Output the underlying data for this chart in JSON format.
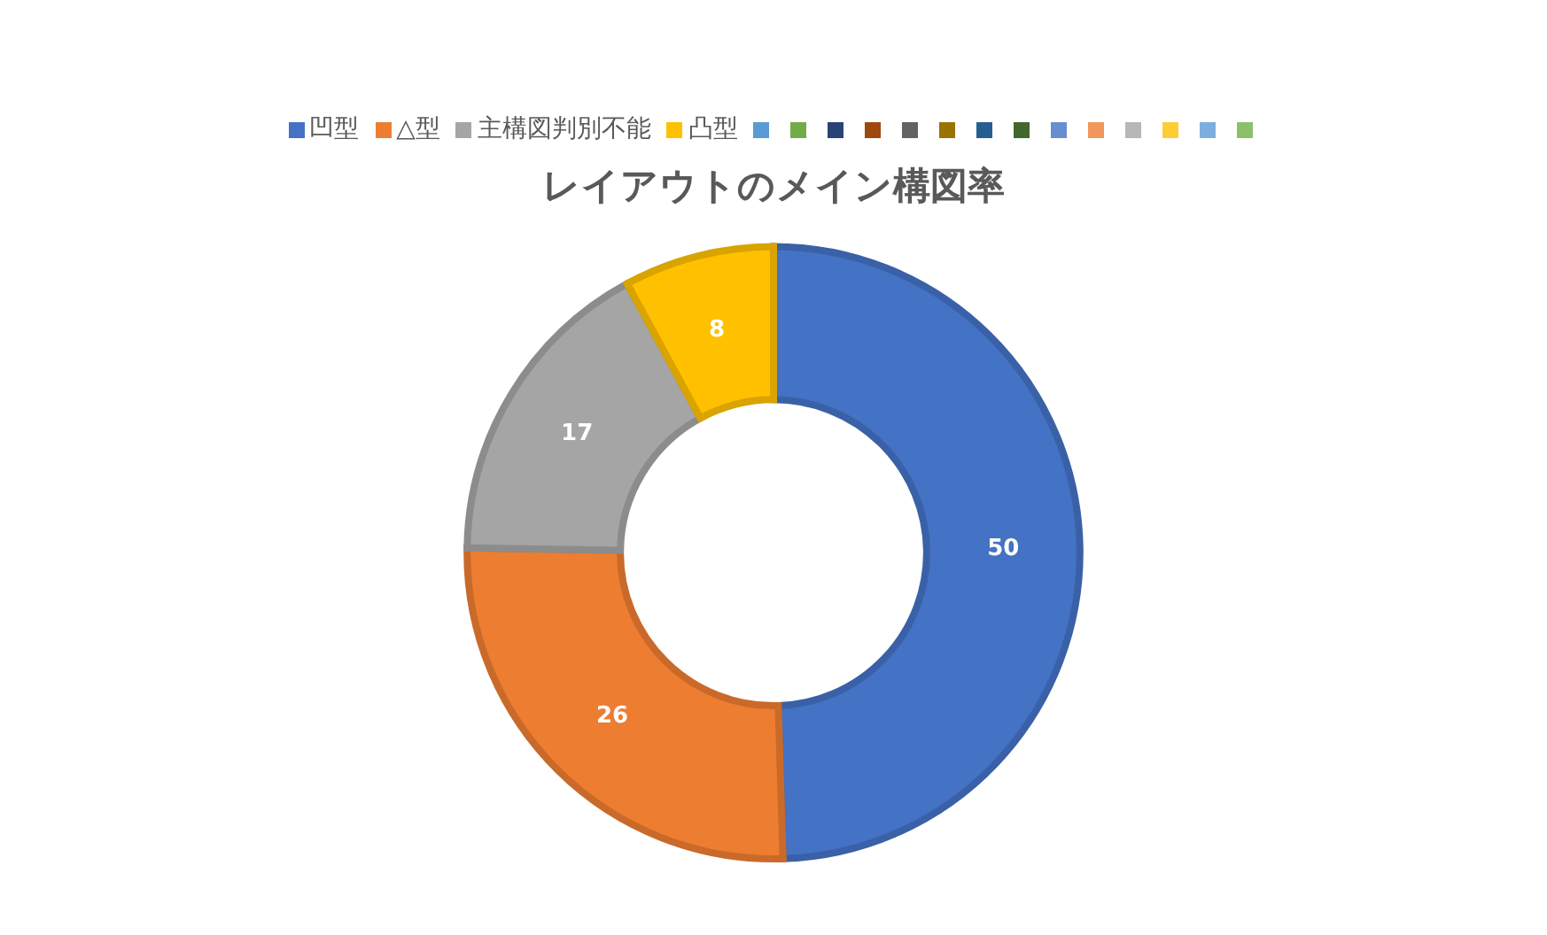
{
  "chart_data": {
    "type": "donut",
    "title": "レイアウトのメイン構図率",
    "categories": [
      "凹型",
      "△型",
      "主構図判別不能",
      "凸型",
      null,
      null,
      null,
      null,
      null,
      null,
      null,
      null,
      null,
      null,
      null,
      null,
      null,
      null
    ],
    "values": [
      50,
      26,
      17,
      8,
      0,
      0,
      0,
      0,
      0,
      0,
      0,
      0,
      0,
      0,
      0,
      0,
      0,
      0
    ],
    "value_labels": [
      "50",
      "26",
      "17",
      "8",
      null,
      null,
      null,
      null,
      null,
      null,
      null,
      null,
      null,
      null,
      null,
      null,
      null,
      null
    ],
    "colors": [
      "#4472c4",
      "#ed7d31",
      "#a5a5a5",
      "#ffc000",
      "#5b9bd5",
      "#70ad47",
      "#264478",
      "#9e480e",
      "#636363",
      "#997300",
      "#255e91",
      "#43682b",
      "#698ed0",
      "#f1975a",
      "#b7b7b7",
      "#ffcd33",
      "#7cafdd",
      "#8cc168"
    ],
    "legend": "top"
  }
}
